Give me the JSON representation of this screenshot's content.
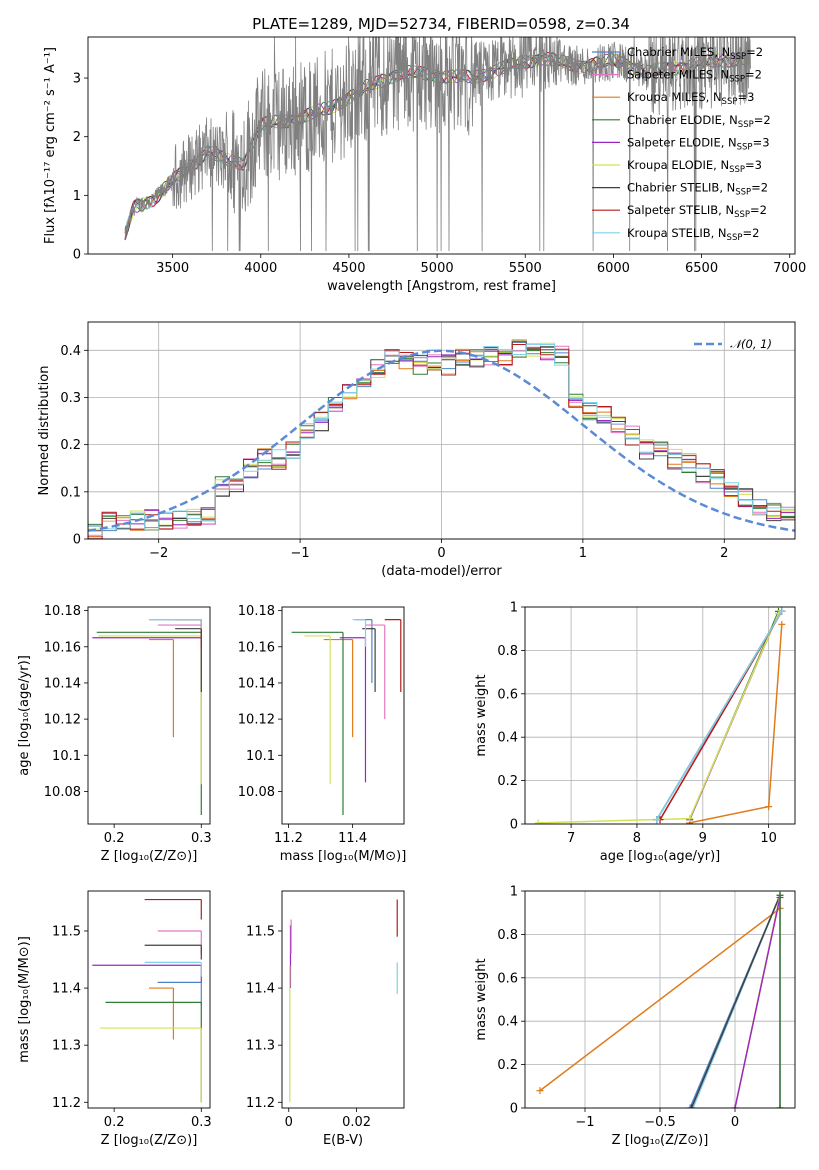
{
  "figure": {
    "title": "PLATE=1289, MJD=52734, FIBERID=0598, z=0.34"
  },
  "colors": {
    "Chabrier MILES": "#4f83c8",
    "Salpeter MILES": "#e377c2",
    "Kroupa MILES": "#e07b1a",
    "Chabrier ELODIE": "#2e7d32",
    "Salpeter ELODIE": "#9b27c1",
    "Kroupa ELODIE": "#d4e157",
    "Chabrier STELIB": "#404040",
    "Salpeter STELIB": "#b71c1c",
    "Kroupa STELIB": "#7fd3e8",
    "data": "#808080",
    "normal": "#5b8bd4"
  },
  "chart_data": [
    {
      "id": "spectrum",
      "type": "line",
      "xlabel": "wavelength [Angstrom, rest frame]",
      "ylabel": "Flux [fλ10⁻¹⁷ erg cm⁻² s⁻¹ A⁻¹]",
      "xlim": [
        3020,
        7030
      ],
      "ylim": [
        0,
        3.7
      ],
      "xticks": [
        3500,
        4000,
        4500,
        5000,
        5500,
        6000,
        6500,
        7000
      ],
      "yticks": [
        0,
        1,
        2,
        3
      ],
      "legend_position": "top-right",
      "legend": [
        {
          "label": "Chabrier MILES, N",
          "sub": "SSP",
          "tail": "=2"
        },
        {
          "label": "Salpeter MILES, N",
          "sub": "SSP",
          "tail": "=2"
        },
        {
          "label": "Kroupa MILES, N",
          "sub": "SSP",
          "tail": "=3"
        },
        {
          "label": "Chabrier ELODIE, N",
          "sub": "SSP",
          "tail": "=2"
        },
        {
          "label": "Salpeter ELODIE, N",
          "sub": "SSP",
          "tail": "=3"
        },
        {
          "label": "Kroupa ELODIE, N",
          "sub": "SSP",
          "tail": "=3"
        },
        {
          "label": "Chabrier STELIB, N",
          "sub": "SSP",
          "tail": "=2"
        },
        {
          "label": "Salpeter STELIB, N",
          "sub": "SSP",
          "tail": "=2"
        },
        {
          "label": "Kroupa STELIB, N",
          "sub": "SSP",
          "tail": "=2"
        }
      ],
      "continuum_anchor_wavelength": [
        3200,
        3280,
        3400,
        3500,
        3600,
        3700,
        3800,
        3900,
        4000,
        4200,
        4400,
        4600,
        4800,
        5000,
        5200,
        5400,
        5600,
        5800,
        6000,
        6200,
        6400,
        6600,
        6800
      ],
      "continuum_anchor_flux": [
        0.0,
        0.8,
        0.95,
        1.25,
        1.5,
        1.75,
        1.6,
        1.55,
        2.2,
        2.3,
        2.5,
        2.85,
        3.1,
        3.05,
        3.0,
        3.2,
        3.35,
        3.2,
        3.3,
        3.1,
        3.2,
        3.3,
        3.35
      ]
    },
    {
      "id": "residuals",
      "type": "histogram",
      "xlabel": "(data-model)/error",
      "ylabel": "Normed distribution",
      "xlim": [
        -2.5,
        2.5
      ],
      "ylim": [
        0,
        0.46
      ],
      "xticks": [
        -2,
        -1,
        0,
        1,
        2
      ],
      "yticks": [
        0.0,
        0.1,
        0.2,
        0.3,
        0.4
      ],
      "grid": true,
      "legend_position": "top-right",
      "legend_label": "𝒩(0, 1)",
      "bin_edges": [
        -2.6,
        -2.5,
        -2.4,
        -2.3,
        -2.2,
        -2.1,
        -2.0,
        -1.9,
        -1.8,
        -1.7,
        -1.6,
        -1.5,
        -1.4,
        -1.3,
        -1.2,
        -1.1,
        -1.0,
        -0.9,
        -0.8,
        -0.7,
        -0.6,
        -0.5,
        -0.4,
        -0.3,
        -0.2,
        -0.1,
        0.0,
        0.1,
        0.2,
        0.3,
        0.4,
        0.5,
        0.6,
        0.7,
        0.8,
        0.9,
        1.0,
        1.1,
        1.2,
        1.3,
        1.4,
        1.5,
        1.6,
        1.7,
        1.8,
        1.9,
        2.0,
        2.1,
        2.2,
        2.3,
        2.4,
        2.5,
        2.6
      ],
      "mean_density": [
        0.02,
        0.02,
        0.04,
        0.04,
        0.04,
        0.04,
        0.04,
        0.04,
        0.05,
        0.05,
        0.11,
        0.11,
        0.15,
        0.17,
        0.17,
        0.19,
        0.23,
        0.25,
        0.28,
        0.31,
        0.33,
        0.36,
        0.39,
        0.38,
        0.37,
        0.38,
        0.37,
        0.38,
        0.38,
        0.39,
        0.39,
        0.4,
        0.41,
        0.4,
        0.39,
        0.3,
        0.27,
        0.26,
        0.24,
        0.22,
        0.19,
        0.19,
        0.17,
        0.16,
        0.14,
        0.13,
        0.1,
        0.09,
        0.07,
        0.06,
        0.05,
        0.04
      ]
    },
    {
      "id": "age-vs-Z",
      "type": "errorbar",
      "xlabel": "Z [log₁₀(Z/Z⊙)]",
      "ylabel": "age  [log₁₀(age/yr)]",
      "xlim": [
        0.17,
        0.31
      ],
      "ylim": [
        10.062,
        10.182
      ],
      "xticks": [
        0.2,
        0.3
      ],
      "yticks": [
        10.08,
        10.1,
        10.12,
        10.14,
        10.16,
        10.18
      ],
      "points": [
        {
          "model": "Chabrier MILES",
          "x": 0.3,
          "y": 10.175,
          "xlo": 0.24,
          "ylo": 10.14
        },
        {
          "model": "Salpeter MILES",
          "x": 0.3,
          "y": 10.172,
          "xlo": 0.25,
          "ylo": 10.155
        },
        {
          "model": "Kroupa MILES",
          "x": 0.268,
          "y": 10.164,
          "xlo": 0.24,
          "ylo": 10.11
        },
        {
          "model": "Chabrier ELODIE",
          "x": 0.3,
          "y": 10.168,
          "xlo": 0.18,
          "ylo": 10.067
        },
        {
          "model": "Salpeter ELODIE",
          "x": 0.3,
          "y": 10.165,
          "xlo": 0.175,
          "ylo": 10.15
        },
        {
          "model": "Kroupa ELODIE",
          "x": 0.3,
          "y": 10.166,
          "xlo": 0.182,
          "ylo": 10.084
        },
        {
          "model": "Chabrier STELIB",
          "x": 0.3,
          "y": 10.17,
          "xlo": 0.27,
          "ylo": 10.135
        },
        {
          "model": "Salpeter STELIB",
          "x": 0.3,
          "y": 10.175,
          "xlo": 0.27,
          "ylo": 10.16
        },
        {
          "model": "Kroupa STELIB",
          "x": 0.3,
          "y": 10.175,
          "xlo": 0.24,
          "ylo": 10.17
        }
      ]
    },
    {
      "id": "age-vs-mass",
      "type": "errorbar",
      "xlabel": "mass [log₁₀(M/M⊙)]",
      "ylabel": "",
      "xlim": [
        11.18,
        11.56
      ],
      "ylim": [
        10.062,
        10.182
      ],
      "xticks": [
        11.2,
        11.4
      ],
      "yticks": [
        10.08,
        10.1,
        10.12,
        10.14,
        10.16,
        10.18
      ],
      "points": [
        {
          "model": "Chabrier MILES",
          "x": 11.46,
          "y": 10.175,
          "xlo": 11.41,
          "ylo": 10.14
        },
        {
          "model": "Salpeter MILES",
          "x": 11.5,
          "y": 10.172,
          "xlo": 11.44,
          "ylo": 10.12
        },
        {
          "model": "Kroupa MILES",
          "x": 11.4,
          "y": 10.164,
          "xlo": 11.31,
          "ylo": 10.11
        },
        {
          "model": "Chabrier ELODIE",
          "x": 11.37,
          "y": 10.168,
          "xlo": 11.21,
          "ylo": 10.067
        },
        {
          "model": "Salpeter ELODIE",
          "x": 11.44,
          "y": 10.165,
          "xlo": 11.36,
          "ylo": 10.085
        },
        {
          "model": "Kroupa ELODIE",
          "x": 11.33,
          "y": 10.166,
          "xlo": 11.25,
          "ylo": 10.084
        },
        {
          "model": "Chabrier STELIB",
          "x": 11.47,
          "y": 10.17,
          "xlo": 11.43,
          "ylo": 10.135
        },
        {
          "model": "Salpeter STELIB",
          "x": 11.55,
          "y": 10.175,
          "xlo": 11.5,
          "ylo": 10.135
        },
        {
          "model": "Kroupa STELIB",
          "x": 11.44,
          "y": 10.175,
          "xlo": 11.4,
          "ylo": 10.16
        }
      ]
    },
    {
      "id": "massweight-vs-age",
      "type": "line",
      "xlabel": "age  [log₁₀(age/yr)]",
      "ylabel": "mass weight",
      "xlim": [
        6.3,
        10.4
      ],
      "ylim": [
        0,
        1.0
      ],
      "xticks": [
        7,
        8,
        9,
        10
      ],
      "yticks": [
        0.0,
        0.2,
        0.4,
        0.6,
        0.8,
        1.0
      ],
      "grid": true,
      "lines": [
        {
          "model": "Chabrier MILES",
          "x": [
            8.3,
            10.2
          ],
          "y": [
            0.02,
            0.98
          ]
        },
        {
          "model": "Salpeter MILES",
          "x": [
            8.35,
            10.2
          ],
          "y": [
            0.02,
            0.98
          ]
        },
        {
          "model": "Kroupa MILES",
          "x": [
            8.8,
            10.0,
            10.2
          ],
          "y": [
            0.005,
            0.08,
            0.92
          ]
        },
        {
          "model": "Chabrier ELODIE",
          "x": [
            8.8,
            10.15
          ],
          "y": [
            0.02,
            0.98
          ]
        },
        {
          "model": "Salpeter ELODIE",
          "x": [
            8.8,
            10.15
          ],
          "y": [
            0.02,
            0.97
          ]
        },
        {
          "model": "Kroupa ELODIE",
          "x": [
            6.5,
            8.8,
            10.15
          ],
          "y": [
            0.005,
            0.025,
            0.97
          ]
        },
        {
          "model": "Chabrier STELIB",
          "x": [
            8.3,
            10.2
          ],
          "y": [
            0.02,
            0.98
          ]
        },
        {
          "model": "Salpeter STELIB",
          "x": [
            8.35,
            10.2
          ],
          "y": [
            0.02,
            0.98
          ]
        },
        {
          "model": "Kroupa STELIB",
          "x": [
            8.3,
            10.2
          ],
          "y": [
            0.02,
            0.98
          ]
        }
      ]
    },
    {
      "id": "mass-vs-Z",
      "type": "errorbar",
      "xlabel": "Z [log₁₀(Z/Z⊙)]",
      "ylabel": "mass [log₁₀(M/M⊙)]",
      "xlim": [
        0.17,
        0.31
      ],
      "ylim": [
        11.19,
        11.57
      ],
      "xticks": [
        0.2,
        0.3
      ],
      "yticks": [
        11.2,
        11.3,
        11.4,
        11.5
      ],
      "points": [
        {
          "model": "Chabrier MILES",
          "x": 0.3,
          "y": 11.41,
          "xlo": 0.25,
          "ylo": 11.37
        },
        {
          "model": "Salpeter MILES",
          "x": 0.3,
          "y": 11.5,
          "xlo": 0.25,
          "ylo": 11.46
        },
        {
          "model": "Kroupa MILES",
          "x": 0.268,
          "y": 11.4,
          "xlo": 0.24,
          "ylo": 11.31
        },
        {
          "model": "Chabrier ELODIE",
          "x": 0.3,
          "y": 11.375,
          "xlo": 0.19,
          "ylo": 11.2
        },
        {
          "model": "Salpeter ELODIE",
          "x": 0.3,
          "y": 11.44,
          "xlo": 0.175,
          "ylo": 11.41
        },
        {
          "model": "Kroupa ELODIE",
          "x": 0.3,
          "y": 11.33,
          "xlo": 0.184,
          "ylo": 11.2
        },
        {
          "model": "Chabrier STELIB",
          "x": 0.3,
          "y": 11.475,
          "xlo": 0.235,
          "ylo": 11.45
        },
        {
          "model": "Salpeter STELIB",
          "x": 0.3,
          "y": 11.555,
          "xlo": 0.235,
          "ylo": 11.52
        },
        {
          "model": "Kroupa STELIB",
          "x": 0.3,
          "y": 11.445,
          "xlo": 0.235,
          "ylo": 11.42
        }
      ]
    },
    {
      "id": "mass-vs-EBV",
      "type": "errorbar",
      "xlabel": "E(B-V)",
      "ylabel": "",
      "xlim": [
        -0.002,
        0.034
      ],
      "ylim": [
        11.19,
        11.57
      ],
      "xticks": [
        0.0,
        0.02
      ],
      "yticks": [
        11.2,
        11.3,
        11.4,
        11.5
      ],
      "points": [
        {
          "model": "Salpeter ELODIE",
          "x": 0.0005,
          "y": 11.44,
          "ylo": 11.4,
          "yhi": 11.51
        },
        {
          "model": "Salpeter MILES",
          "x": 0.0007,
          "y": 11.5,
          "ylo": 11.46,
          "yhi": 11.52
        },
        {
          "model": "Kroupa ELODIE",
          "x": 0.0003,
          "y": 11.33,
          "ylo": 11.2,
          "yhi": 11.44
        },
        {
          "model": "Salpeter STELIB",
          "x": 0.032,
          "y": 11.52,
          "ylo": 11.49,
          "yhi": 11.555
        },
        {
          "model": "Kroupa STELIB",
          "x": 0.032,
          "y": 11.42,
          "ylo": 11.39,
          "yhi": 11.445
        }
      ]
    },
    {
      "id": "massweight-vs-Z",
      "type": "line",
      "xlabel": "Z [log₁₀(Z/Z⊙)]",
      "ylabel": "mass weight",
      "xlim": [
        -1.4,
        0.4
      ],
      "ylim": [
        0,
        1.0
      ],
      "xticks": [
        -1.0,
        -0.5,
        0.0
      ],
      "yticks": [
        0.0,
        0.2,
        0.4,
        0.6,
        0.8,
        1.0
      ],
      "grid": true,
      "lines": [
        {
          "model": "Kroupa MILES",
          "x": [
            -1.3,
            0.3
          ],
          "y": [
            0.08,
            0.92
          ]
        },
        {
          "model": "Chabrier MILES",
          "x": [
            -0.3,
            0.3
          ],
          "y": [
            0.0,
            0.98
          ]
        },
        {
          "model": "Kroupa STELIB",
          "x": [
            -0.28,
            0.3
          ],
          "y": [
            0.0,
            0.98
          ]
        },
        {
          "model": "Chabrier STELIB",
          "x": [
            -0.29,
            0.3
          ],
          "y": [
            0.0,
            0.98
          ]
        },
        {
          "model": "Kroupa ELODIE",
          "x": [
            0.0,
            0.3
          ],
          "y": [
            0.0,
            0.98
          ]
        },
        {
          "model": "Salpeter ELODIE",
          "x": [
            0.0,
            0.3
          ],
          "y": [
            0.0,
            0.97
          ]
        },
        {
          "model": "Salpeter MILES",
          "x": [
            0.3,
            0.3
          ],
          "y": [
            0.0,
            0.98
          ]
        },
        {
          "model": "Chabrier ELODIE",
          "x": [
            0.3,
            0.3
          ],
          "y": [
            0.0,
            0.98
          ]
        }
      ]
    }
  ]
}
